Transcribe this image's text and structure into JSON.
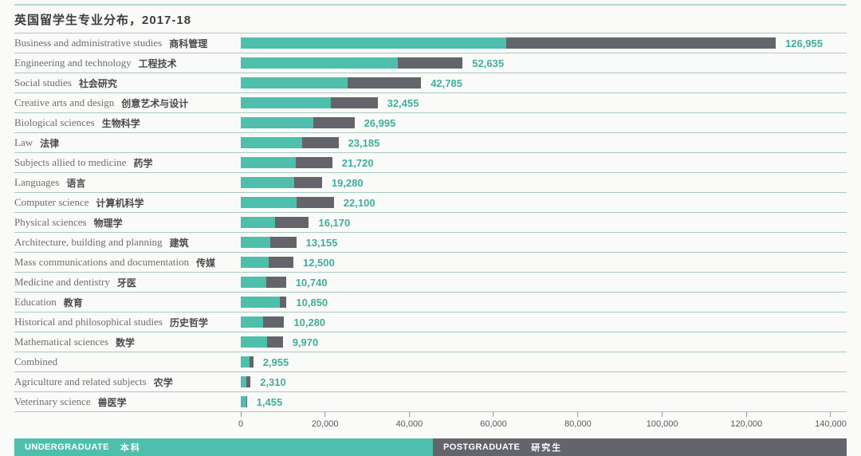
{
  "title": "英国留学生专业分布，2017-18",
  "colors": {
    "undergraduate": "#4dbfac",
    "postgraduate": "#63656a",
    "value_label": "#3fae9c",
    "separator": "#a8cbc5"
  },
  "legend": {
    "undergraduate_label": "UNDERGRADUATE",
    "undergraduate_zh": "本科",
    "postgraduate_label": "POSTGRADUATE",
    "postgraduate_zh": "研究生"
  },
  "chart_data": {
    "type": "bar",
    "orientation": "horizontal",
    "stacked": true,
    "title": "英国留学生专业分布，2017-18",
    "xlim": [
      0,
      140000
    ],
    "x_tick_values": [
      0,
      20000,
      40000,
      60000,
      80000,
      100000,
      120000,
      140000
    ],
    "x_tick_labels": [
      "0",
      "20,000",
      "40,000",
      "60,000",
      "80,000",
      "100,000",
      "120,000",
      "140,000"
    ],
    "series_names": [
      "Undergraduate",
      "Postgraduate"
    ],
    "legend_position": "bottom",
    "grid": false,
    "rows": [
      {
        "en": "Business and administrative studies",
        "zh": "商科管理",
        "total": 126955,
        "total_label": "126,955",
        "undergraduate": 63000,
        "postgraduate": 63955
      },
      {
        "en": "Engineering and technology",
        "zh": "工程技术",
        "total": 52635,
        "total_label": "52,635",
        "undergraduate": 37300,
        "postgraduate": 15335
      },
      {
        "en": "Social studies",
        "zh": "社会研究",
        "total": 42785,
        "total_label": "42,785",
        "undergraduate": 25400,
        "postgraduate": 17385
      },
      {
        "en": "Creative arts and design",
        "zh": "创意艺术与设计",
        "total": 32455,
        "total_label": "32,455",
        "undergraduate": 21300,
        "postgraduate": 11155
      },
      {
        "en": "Biological sciences",
        "zh": "生物科学",
        "total": 26995,
        "total_label": "26,995",
        "undergraduate": 17300,
        "postgraduate": 9695
      },
      {
        "en": "Law",
        "zh": "法律",
        "total": 23185,
        "total_label": "23,185",
        "undergraduate": 14600,
        "postgraduate": 8585
      },
      {
        "en": "Subjects allied to medicine",
        "zh": "药学",
        "total": 21720,
        "total_label": "21,720",
        "undergraduate": 13000,
        "postgraduate": 8720
      },
      {
        "en": "Languages",
        "zh": "语言",
        "total": 19280,
        "total_label": "19,280",
        "undergraduate": 12700,
        "postgraduate": 6580
      },
      {
        "en": "Computer science",
        "zh": "计算机科学",
        "total": 22100,
        "total_label": "22,100",
        "undergraduate": 13200,
        "postgraduate": 8900
      },
      {
        "en": "Physical sciences",
        "zh": "物理学",
        "total": 16170,
        "total_label": "16,170",
        "undergraduate": 8100,
        "postgraduate": 8070
      },
      {
        "en": "Architecture, building and planning",
        "zh": "建筑",
        "total": 13155,
        "total_label": "13,155",
        "undergraduate": 6900,
        "postgraduate": 6255
      },
      {
        "en": "Mass communications and documentation",
        "zh": "传媒",
        "total": 12500,
        "total_label": "12,500",
        "undergraduate": 6650,
        "postgraduate": 5850
      },
      {
        "en": "Medicine and dentistry",
        "zh": "牙医",
        "total": 10740,
        "total_label": "10,740",
        "undergraduate": 6050,
        "postgraduate": 4690
      },
      {
        "en": "Education",
        "zh": "教育",
        "total": 10850,
        "total_label": "10,850",
        "undergraduate": 9250,
        "postgraduate": 1600
      },
      {
        "en": "Historical and philosophical studies",
        "zh": "历史哲学",
        "total": 10280,
        "total_label": "10,280",
        "undergraduate": 5200,
        "postgraduate": 5080
      },
      {
        "en": "Mathematical sciences",
        "zh": "数学",
        "total": 9970,
        "total_label": "9,970",
        "undergraduate": 6300,
        "postgraduate": 3670
      },
      {
        "en": "Combined",
        "zh": "",
        "total": 2955,
        "total_label": "2,955",
        "undergraduate": 2150,
        "postgraduate": 805
      },
      {
        "en": "Agriculture and related subjects",
        "zh": "农学",
        "total": 2310,
        "total_label": "2,310",
        "undergraduate": 1250,
        "postgraduate": 1060
      },
      {
        "en": "Veterinary science",
        "zh": "兽医学",
        "total": 1455,
        "total_label": "1,455",
        "undergraduate": 1300,
        "postgraduate": 155
      }
    ]
  }
}
